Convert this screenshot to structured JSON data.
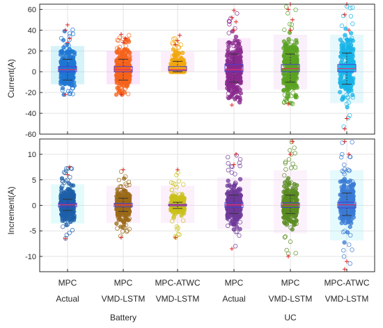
{
  "figure": {
    "category_labels": [
      {
        "line1": "MPC",
        "line2": "Actual"
      },
      {
        "line1": "MPC",
        "line2": "VMD-LSTM"
      },
      {
        "line1": "MPC-ATWC",
        "line2": "VMD-LSTM"
      },
      {
        "line1": "MPC",
        "line2": "Actual"
      },
      {
        "line1": "MPC",
        "line2": "VMD-LSTM"
      },
      {
        "line1": "MPC-ATWC",
        "line2": "VMD-LSTM"
      }
    ],
    "group_labels": [
      "Battery",
      "UC"
    ]
  },
  "chart_data": [
    {
      "type": "box",
      "ylabel": "Current(A)",
      "ylim": [
        -60,
        65
      ],
      "yticks": [
        -60,
        -40,
        -20,
        0,
        20,
        40,
        60
      ],
      "grid": true,
      "series": [
        {
          "color": "#1f77d4",
          "halo": "#6ad3ea",
          "q1": 0,
          "median": 2,
          "q3": 5,
          "whisker_low": -8,
          "whisker_high": 12,
          "jitter_min": -22,
          "jitter_max": 45,
          "outliers": [
            -22,
            28,
            32,
            40,
            45
          ]
        },
        {
          "color": "#f5631c",
          "halo": "#f0a0f0",
          "q1": 0,
          "median": 2,
          "q3": 5,
          "whisker_low": -8,
          "whisker_high": 12,
          "jitter_min": -22,
          "jitter_max": 36,
          "outliers": [
            -22,
            28,
            32,
            36
          ]
        },
        {
          "color": "#f2a80e",
          "halo": "#f5c3f0",
          "q1": 1,
          "median": 2,
          "q3": 5,
          "whisker_low": 0,
          "whisker_high": 10,
          "jitter_min": 0,
          "jitter_max": 35,
          "outliers": [
            26,
            30,
            35
          ]
        },
        {
          "color": "#8a2a8e",
          "halo": "#f2b6f2",
          "q1": 0,
          "median": 2,
          "q3": 7,
          "whisker_low": -10,
          "whisker_high": 17,
          "jitter_min": -32,
          "jitter_max": 59,
          "outliers": [
            -32,
            40,
            48,
            52,
            59
          ]
        },
        {
          "color": "#5aa321",
          "halo": "#e8c8f2",
          "q1": 0,
          "median": 3,
          "q3": 7,
          "whisker_low": -10,
          "whisker_high": 17,
          "jitter_min": -31,
          "jitter_max": 65,
          "outliers": [
            -31,
            40,
            50,
            60,
            65
          ]
        },
        {
          "color": "#18b4e8",
          "halo": "#a9e6f5",
          "q1": 0,
          "median": 3,
          "q3": 7,
          "whisker_low": -12,
          "whisker_high": 18,
          "jitter_min": -55,
          "jitter_max": 65,
          "outliers": [
            -55,
            -45,
            40,
            55,
            65
          ]
        }
      ]
    },
    {
      "type": "box",
      "ylabel": "Increment(A)",
      "ylim": [
        -13,
        13
      ],
      "yticks": [
        -10,
        -5,
        0,
        5,
        10
      ],
      "grid": true,
      "series": [
        {
          "color": "#1e5fa8",
          "halo": "#9af0f0",
          "q1": -0.3,
          "median": 0.1,
          "q3": 0.4,
          "whisker_low": -1,
          "whisker_high": 1.2,
          "jitter_min": -6.5,
          "jitter_max": 7.5,
          "outliers": [
            -6.5,
            6,
            7.5
          ]
        },
        {
          "color": "#9b6a1a",
          "halo": "#f5c8f5",
          "q1": -0.3,
          "median": 0.1,
          "q3": 0.4,
          "whisker_low": -1.2,
          "whisker_high": 1.4,
          "jitter_min": -6.3,
          "jitter_max": 7,
          "outliers": [
            -6.3,
            7
          ]
        },
        {
          "color": "#c9c01a",
          "halo": "#f5c8f5",
          "q1": -0.1,
          "median": 0.05,
          "q3": 0.2,
          "whisker_low": -0.6,
          "whisker_high": 0.6,
          "jitter_min": -6.3,
          "jitter_max": 7,
          "outliers": [
            -6.3,
            7
          ]
        },
        {
          "color": "#6f3a9a",
          "halo": "#f6d2f4",
          "q1": -0.4,
          "median": 0.1,
          "q3": 0.5,
          "whisker_low": -1.6,
          "whisker_high": 2,
          "jitter_min": -8.5,
          "jitter_max": 10,
          "outliers": [
            -8.5,
            8,
            10
          ]
        },
        {
          "color": "#5b8c22",
          "halo": "#f6d2f4",
          "q1": -0.4,
          "median": 0.1,
          "q3": 0.5,
          "whisker_low": -1.6,
          "whisker_high": 2,
          "jitter_min": -10,
          "jitter_max": 12.5,
          "outliers": [
            -10,
            10,
            12.5
          ]
        },
        {
          "color": "#3a7bd5",
          "halo": "#a0ecf3",
          "q1": -0.5,
          "median": 0.1,
          "q3": 0.6,
          "whisker_low": -2,
          "whisker_high": 2.4,
          "jitter_min": -12.5,
          "jitter_max": 12.5,
          "outliers": [
            -12.5,
            -11,
            10,
            12.5
          ]
        }
      ]
    }
  ]
}
